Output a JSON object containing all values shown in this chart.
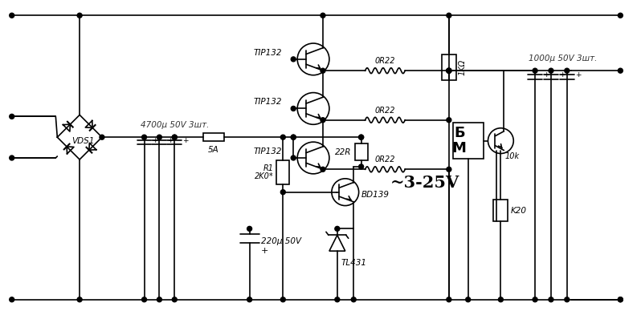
{
  "bg_color": "#ffffff",
  "line_color": "#000000",
  "fig_width": 7.93,
  "fig_height": 3.93,
  "dpi": 100,
  "labels": {
    "vds1": "VDS1",
    "cap1": "4700μ 50V 3шт.",
    "fuse": "5A",
    "tip1": "TIP132",
    "tip2": "TIP132",
    "tip3": "TIP132",
    "r0r22": "0R22",
    "r22": "22R",
    "r1_top": "R1",
    "r1_bot": "2K0*",
    "bd139": "BD139",
    "tl431": "TL431",
    "voltage": "~3-25V",
    "b_label": "Б",
    "m_label": "М",
    "cap2": "220μ 50V",
    "cap3": "1000μ 50V 3шт.",
    "res1k": "1KΩ",
    "res10k": "10k",
    "resk20": "K20"
  }
}
